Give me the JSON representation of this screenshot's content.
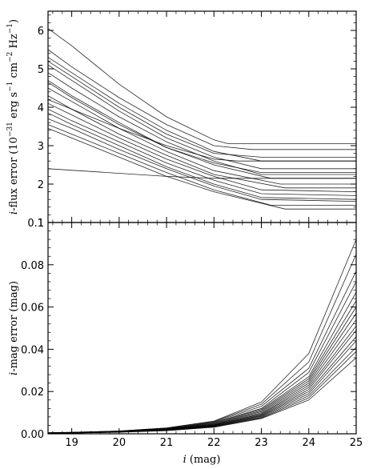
{
  "figure": {
    "top_panel": {
      "ylabel": "i-flux error (10⁻³¹ erg s⁻¹ cm⁻² Hz⁻¹)",
      "ylabel_parts": [
        "i",
        "-flux error (10",
        "−31",
        " erg s",
        "−1",
        " cm",
        "−2",
        " Hz",
        "−1",
        ")"
      ]
    },
    "bottom_panel": {
      "ylabel": "i-mag error (mag)",
      "ylabel_parts": [
        "i",
        "-mag error (mag)"
      ]
    },
    "xlabel": "i (mag)",
    "xlabel_parts": [
      "i",
      " (mag)"
    ]
  },
  "chart_data": [
    {
      "type": "line",
      "panel": "top",
      "xlabel": "i (mag)",
      "ylabel": "i-flux error (10^-31 erg s^-1 cm^-2 Hz^-1)",
      "xlim": [
        18.5,
        25
      ],
      "ylim": [
        1,
        6.5
      ],
      "xticks": [
        19,
        20,
        21,
        22,
        23,
        24,
        25
      ],
      "yticks": [
        1,
        2,
        3,
        4,
        5,
        6
      ],
      "ytick_labels": [
        "1",
        "2",
        "3",
        "4",
        "5",
        "6"
      ],
      "grid": false,
      "line_color": "#000000",
      "description_of_series": "Many thin curves each decreasing with magnitude then flattening to a constant floor",
      "series": [
        {
          "x": [
            18.5,
            19,
            20,
            21,
            22,
            22.3,
            25
          ],
          "y": [
            6.05,
            5.6,
            4.6,
            3.75,
            3.15,
            3.05,
            3.05
          ]
        },
        {
          "x": [
            18.5,
            19,
            20,
            21,
            22,
            22.8,
            25
          ],
          "y": [
            5.5,
            5.05,
            4.25,
            3.55,
            3.0,
            2.9,
            2.9
          ]
        },
        {
          "x": [
            18.5,
            19,
            20,
            21,
            22,
            23,
            25
          ],
          "y": [
            5.3,
            4.9,
            4.1,
            3.4,
            2.85,
            2.6,
            2.6
          ]
        },
        {
          "x": [
            18.5,
            19,
            20,
            21,
            22,
            23,
            25
          ],
          "y": [
            5.1,
            4.7,
            3.9,
            3.2,
            2.7,
            2.4,
            2.4
          ]
        },
        {
          "x": [
            18.5,
            19,
            20,
            21,
            22,
            23,
            25
          ],
          "y": [
            4.9,
            4.5,
            3.75,
            3.1,
            2.6,
            2.25,
            2.25
          ]
        },
        {
          "x": [
            18.5,
            19,
            20,
            21,
            22,
            23.2,
            25
          ],
          "y": [
            4.7,
            4.3,
            3.6,
            2.95,
            2.5,
            2.15,
            2.15
          ]
        },
        {
          "x": [
            18.5,
            19,
            20,
            21,
            22,
            23.4,
            25
          ],
          "y": [
            4.5,
            4.15,
            3.45,
            2.85,
            2.35,
            2.0,
            2.0
          ]
        },
        {
          "x": [
            18.5,
            19,
            20,
            21,
            22,
            23.5,
            25
          ],
          "y": [
            4.3,
            3.95,
            3.3,
            2.75,
            2.25,
            1.9,
            1.9
          ]
        },
        {
          "x": [
            18.5,
            19,
            20,
            21,
            22,
            23,
            25
          ],
          "y": [
            4.1,
            3.8,
            3.2,
            2.65,
            2.2,
            1.85,
            1.8
          ]
        },
        {
          "x": [
            18.5,
            19,
            20,
            21,
            22,
            23,
            25
          ],
          "y": [
            3.95,
            3.65,
            3.1,
            2.55,
            2.1,
            1.75,
            1.7
          ]
        },
        {
          "x": [
            18.5,
            19,
            20,
            21,
            22,
            23,
            25
          ],
          "y": [
            3.85,
            3.55,
            3.0,
            2.45,
            2.0,
            1.65,
            1.6
          ]
        },
        {
          "x": [
            18.5,
            19,
            20,
            21,
            22,
            23,
            25
          ],
          "y": [
            3.7,
            3.45,
            2.9,
            2.4,
            1.95,
            1.6,
            1.55
          ]
        },
        {
          "x": [
            18.5,
            19,
            20,
            21,
            22,
            23.2,
            25
          ],
          "y": [
            3.55,
            3.3,
            2.8,
            2.3,
            1.85,
            1.45,
            1.45
          ]
        },
        {
          "x": [
            18.5,
            19,
            20,
            21,
            22,
            23.5,
            25
          ],
          "y": [
            3.45,
            3.2,
            2.7,
            2.2,
            1.8,
            1.35,
            1.35
          ]
        },
        {
          "x": [
            18.5,
            19,
            20,
            21,
            22,
            23,
            25
          ],
          "y": [
            4.65,
            4.25,
            3.55,
            2.95,
            2.55,
            2.3,
            2.3
          ]
        },
        {
          "x": [
            18.5,
            19,
            20,
            21,
            22,
            23,
            25
          ],
          "y": [
            5.2,
            4.8,
            4.0,
            3.3,
            2.8,
            2.7,
            2.7
          ]
        },
        {
          "x": [
            18.5,
            19,
            20,
            21,
            22,
            22.5,
            25
          ],
          "y": [
            4.2,
            3.95,
            3.45,
            3.0,
            2.65,
            2.6,
            2.6
          ]
        },
        {
          "x": [
            18.5,
            21,
            22,
            25
          ],
          "y": [
            2.4,
            2.2,
            2.15,
            2.15
          ]
        }
      ]
    },
    {
      "type": "line",
      "panel": "bottom",
      "xlabel": "i (mag)",
      "ylabel": "i-mag error (mag)",
      "xlim": [
        18.5,
        25
      ],
      "ylim": [
        0,
        0.1
      ],
      "xticks": [
        19,
        20,
        21,
        22,
        23,
        24,
        25
      ],
      "xtick_labels": [
        "19",
        "20",
        "21",
        "22",
        "23",
        "24",
        "25"
      ],
      "yticks": [
        0,
        0.02,
        0.04,
        0.06,
        0.08,
        0.1
      ],
      "ytick_labels": [
        "0.00",
        "0.02",
        "0.04",
        "0.06",
        "0.08",
        "0.1"
      ],
      "grid": false,
      "line_color": "#000000",
      "description_of_series": "Many thin curves rising exponentially with magnitude",
      "series": [
        {
          "x": [
            18.5,
            19,
            20,
            21,
            22,
            23,
            24,
            25
          ],
          "y": [
            0.0005,
            0.0007,
            0.0013,
            0.0028,
            0.006,
            0.015,
            0.038,
            0.092
          ]
        },
        {
          "x": [
            18.5,
            19,
            20,
            21,
            22,
            23,
            24,
            25
          ],
          "y": [
            0.0005,
            0.0007,
            0.0013,
            0.0027,
            0.0058,
            0.014,
            0.034,
            0.085
          ]
        },
        {
          "x": [
            18.5,
            19,
            20,
            21,
            22,
            23,
            24,
            25
          ],
          "y": [
            0.0004,
            0.0006,
            0.0012,
            0.0025,
            0.0055,
            0.013,
            0.031,
            0.077
          ]
        },
        {
          "x": [
            18.5,
            19,
            20,
            21,
            22,
            23,
            24,
            25
          ],
          "y": [
            0.0004,
            0.0006,
            0.0012,
            0.0024,
            0.0052,
            0.012,
            0.029,
            0.072
          ]
        },
        {
          "x": [
            18.5,
            19,
            20,
            21,
            22,
            23,
            24,
            25
          ],
          "y": [
            0.0004,
            0.0006,
            0.0011,
            0.0023,
            0.005,
            0.0115,
            0.027,
            0.067
          ]
        },
        {
          "x": [
            18.5,
            19,
            20,
            21,
            22,
            23,
            24,
            25
          ],
          "y": [
            0.0004,
            0.0006,
            0.0011,
            0.0022,
            0.0047,
            0.011,
            0.026,
            0.063
          ]
        },
        {
          "x": [
            18.5,
            19,
            20,
            21,
            22,
            23,
            24,
            25
          ],
          "y": [
            0.0004,
            0.0005,
            0.001,
            0.0021,
            0.0045,
            0.0105,
            0.025,
            0.06
          ]
        },
        {
          "x": [
            18.5,
            19,
            20,
            21,
            22,
            23,
            24,
            25
          ],
          "y": [
            0.0003,
            0.0005,
            0.001,
            0.002,
            0.0043,
            0.01,
            0.024,
            0.057
          ]
        },
        {
          "x": [
            18.5,
            19,
            20,
            21,
            22,
            23,
            24,
            25
          ],
          "y": [
            0.0003,
            0.0005,
            0.001,
            0.002,
            0.0041,
            0.0095,
            0.023,
            0.054
          ]
        },
        {
          "x": [
            18.5,
            19,
            20,
            21,
            22,
            23,
            24,
            25
          ],
          "y": [
            0.0003,
            0.0005,
            0.0009,
            0.0019,
            0.004,
            0.0092,
            0.022,
            0.051
          ]
        },
        {
          "x": [
            18.5,
            19,
            20,
            21,
            22,
            23,
            24,
            25
          ],
          "y": [
            0.0003,
            0.0005,
            0.0009,
            0.0018,
            0.0038,
            0.0088,
            0.021,
            0.049
          ]
        },
        {
          "x": [
            18.5,
            19,
            20,
            21,
            22,
            23,
            24,
            25
          ],
          "y": [
            0.0003,
            0.0004,
            0.0009,
            0.0018,
            0.0037,
            0.0085,
            0.02,
            0.046
          ]
        },
        {
          "x": [
            18.5,
            19,
            20,
            21,
            22,
            23,
            24,
            25
          ],
          "y": [
            0.0003,
            0.0004,
            0.0008,
            0.0017,
            0.0035,
            0.0082,
            0.019,
            0.044
          ]
        },
        {
          "x": [
            18.5,
            19,
            20,
            21,
            22,
            23,
            24,
            25
          ],
          "y": [
            0.0003,
            0.0004,
            0.0008,
            0.0016,
            0.0034,
            0.0078,
            0.018,
            0.041
          ]
        },
        {
          "x": [
            18.5,
            19,
            20,
            21,
            22,
            23,
            24,
            25
          ],
          "y": [
            0.0003,
            0.0004,
            0.0008,
            0.0016,
            0.0033,
            0.0075,
            0.017,
            0.039
          ]
        },
        {
          "x": [
            18.5,
            19,
            20,
            21,
            22,
            23,
            24,
            25
          ],
          "y": [
            0.0003,
            0.0004,
            0.0007,
            0.0015,
            0.0031,
            0.0072,
            0.016,
            0.036
          ]
        }
      ]
    }
  ]
}
